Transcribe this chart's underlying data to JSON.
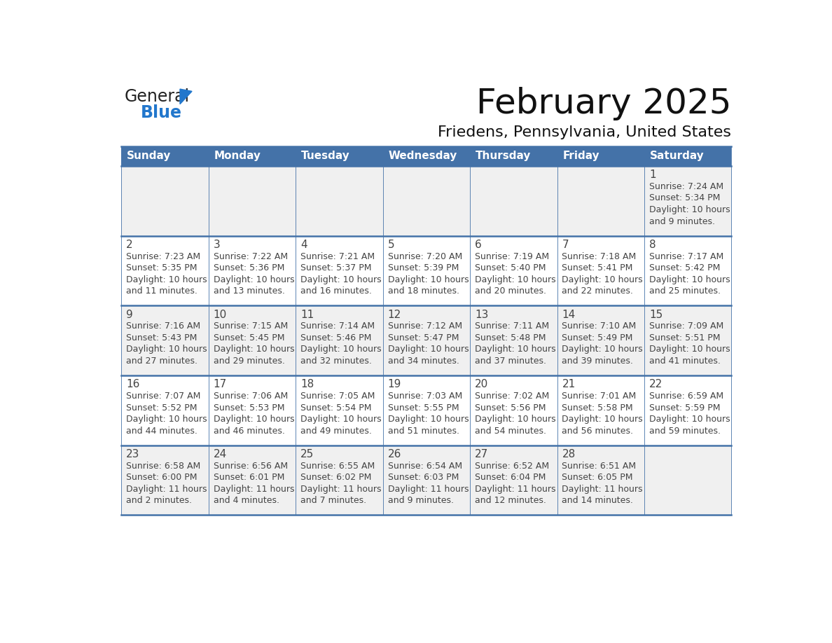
{
  "title": "February 2025",
  "subtitle": "Friedens, Pennsylvania, United States",
  "header_color": "#4472a8",
  "header_text_color": "#ffffff",
  "days_of_week": [
    "Sunday",
    "Monday",
    "Tuesday",
    "Wednesday",
    "Thursday",
    "Friday",
    "Saturday"
  ],
  "row_bg_colors": [
    "#f0f0f0",
    "#ffffff"
  ],
  "border_color": "#4472a8",
  "text_color": "#444444",
  "day_number_color": "#444444",
  "calendar_data": [
    [
      {
        "day": "",
        "sunrise": "",
        "sunset": "",
        "daylight": ""
      },
      {
        "day": "",
        "sunrise": "",
        "sunset": "",
        "daylight": ""
      },
      {
        "day": "",
        "sunrise": "",
        "sunset": "",
        "daylight": ""
      },
      {
        "day": "",
        "sunrise": "",
        "sunset": "",
        "daylight": ""
      },
      {
        "day": "",
        "sunrise": "",
        "sunset": "",
        "daylight": ""
      },
      {
        "day": "",
        "sunrise": "",
        "sunset": "",
        "daylight": ""
      },
      {
        "day": "1",
        "sunrise": "Sunrise: 7:24 AM",
        "sunset": "Sunset: 5:34 PM",
        "daylight": "Daylight: 10 hours\nand 9 minutes."
      }
    ],
    [
      {
        "day": "2",
        "sunrise": "Sunrise: 7:23 AM",
        "sunset": "Sunset: 5:35 PM",
        "daylight": "Daylight: 10 hours\nand 11 minutes."
      },
      {
        "day": "3",
        "sunrise": "Sunrise: 7:22 AM",
        "sunset": "Sunset: 5:36 PM",
        "daylight": "Daylight: 10 hours\nand 13 minutes."
      },
      {
        "day": "4",
        "sunrise": "Sunrise: 7:21 AM",
        "sunset": "Sunset: 5:37 PM",
        "daylight": "Daylight: 10 hours\nand 16 minutes."
      },
      {
        "day": "5",
        "sunrise": "Sunrise: 7:20 AM",
        "sunset": "Sunset: 5:39 PM",
        "daylight": "Daylight: 10 hours\nand 18 minutes."
      },
      {
        "day": "6",
        "sunrise": "Sunrise: 7:19 AM",
        "sunset": "Sunset: 5:40 PM",
        "daylight": "Daylight: 10 hours\nand 20 minutes."
      },
      {
        "day": "7",
        "sunrise": "Sunrise: 7:18 AM",
        "sunset": "Sunset: 5:41 PM",
        "daylight": "Daylight: 10 hours\nand 22 minutes."
      },
      {
        "day": "8",
        "sunrise": "Sunrise: 7:17 AM",
        "sunset": "Sunset: 5:42 PM",
        "daylight": "Daylight: 10 hours\nand 25 minutes."
      }
    ],
    [
      {
        "day": "9",
        "sunrise": "Sunrise: 7:16 AM",
        "sunset": "Sunset: 5:43 PM",
        "daylight": "Daylight: 10 hours\nand 27 minutes."
      },
      {
        "day": "10",
        "sunrise": "Sunrise: 7:15 AM",
        "sunset": "Sunset: 5:45 PM",
        "daylight": "Daylight: 10 hours\nand 29 minutes."
      },
      {
        "day": "11",
        "sunrise": "Sunrise: 7:14 AM",
        "sunset": "Sunset: 5:46 PM",
        "daylight": "Daylight: 10 hours\nand 32 minutes."
      },
      {
        "day": "12",
        "sunrise": "Sunrise: 7:12 AM",
        "sunset": "Sunset: 5:47 PM",
        "daylight": "Daylight: 10 hours\nand 34 minutes."
      },
      {
        "day": "13",
        "sunrise": "Sunrise: 7:11 AM",
        "sunset": "Sunset: 5:48 PM",
        "daylight": "Daylight: 10 hours\nand 37 minutes."
      },
      {
        "day": "14",
        "sunrise": "Sunrise: 7:10 AM",
        "sunset": "Sunset: 5:49 PM",
        "daylight": "Daylight: 10 hours\nand 39 minutes."
      },
      {
        "day": "15",
        "sunrise": "Sunrise: 7:09 AM",
        "sunset": "Sunset: 5:51 PM",
        "daylight": "Daylight: 10 hours\nand 41 minutes."
      }
    ],
    [
      {
        "day": "16",
        "sunrise": "Sunrise: 7:07 AM",
        "sunset": "Sunset: 5:52 PM",
        "daylight": "Daylight: 10 hours\nand 44 minutes."
      },
      {
        "day": "17",
        "sunrise": "Sunrise: 7:06 AM",
        "sunset": "Sunset: 5:53 PM",
        "daylight": "Daylight: 10 hours\nand 46 minutes."
      },
      {
        "day": "18",
        "sunrise": "Sunrise: 7:05 AM",
        "sunset": "Sunset: 5:54 PM",
        "daylight": "Daylight: 10 hours\nand 49 minutes."
      },
      {
        "day": "19",
        "sunrise": "Sunrise: 7:03 AM",
        "sunset": "Sunset: 5:55 PM",
        "daylight": "Daylight: 10 hours\nand 51 minutes."
      },
      {
        "day": "20",
        "sunrise": "Sunrise: 7:02 AM",
        "sunset": "Sunset: 5:56 PM",
        "daylight": "Daylight: 10 hours\nand 54 minutes."
      },
      {
        "day": "21",
        "sunrise": "Sunrise: 7:01 AM",
        "sunset": "Sunset: 5:58 PM",
        "daylight": "Daylight: 10 hours\nand 56 minutes."
      },
      {
        "day": "22",
        "sunrise": "Sunrise: 6:59 AM",
        "sunset": "Sunset: 5:59 PM",
        "daylight": "Daylight: 10 hours\nand 59 minutes."
      }
    ],
    [
      {
        "day": "23",
        "sunrise": "Sunrise: 6:58 AM",
        "sunset": "Sunset: 6:00 PM",
        "daylight": "Daylight: 11 hours\nand 2 minutes."
      },
      {
        "day": "24",
        "sunrise": "Sunrise: 6:56 AM",
        "sunset": "Sunset: 6:01 PM",
        "daylight": "Daylight: 11 hours\nand 4 minutes."
      },
      {
        "day": "25",
        "sunrise": "Sunrise: 6:55 AM",
        "sunset": "Sunset: 6:02 PM",
        "daylight": "Daylight: 11 hours\nand 7 minutes."
      },
      {
        "day": "26",
        "sunrise": "Sunrise: 6:54 AM",
        "sunset": "Sunset: 6:03 PM",
        "daylight": "Daylight: 11 hours\nand 9 minutes."
      },
      {
        "day": "27",
        "sunrise": "Sunrise: 6:52 AM",
        "sunset": "Sunset: 6:04 PM",
        "daylight": "Daylight: 11 hours\nand 12 minutes."
      },
      {
        "day": "28",
        "sunrise": "Sunrise: 6:51 AM",
        "sunset": "Sunset: 6:05 PM",
        "daylight": "Daylight: 11 hours\nand 14 minutes."
      },
      {
        "day": "",
        "sunrise": "",
        "sunset": "",
        "daylight": ""
      }
    ]
  ],
  "logo_color_general": "#222222",
  "logo_color_blue": "#2277cc",
  "logo_triangle_color": "#2277cc",
  "title_fontsize": 36,
  "subtitle_fontsize": 16,
  "header_fontsize": 11,
  "day_number_fontsize": 11,
  "cell_text_fontsize": 9
}
